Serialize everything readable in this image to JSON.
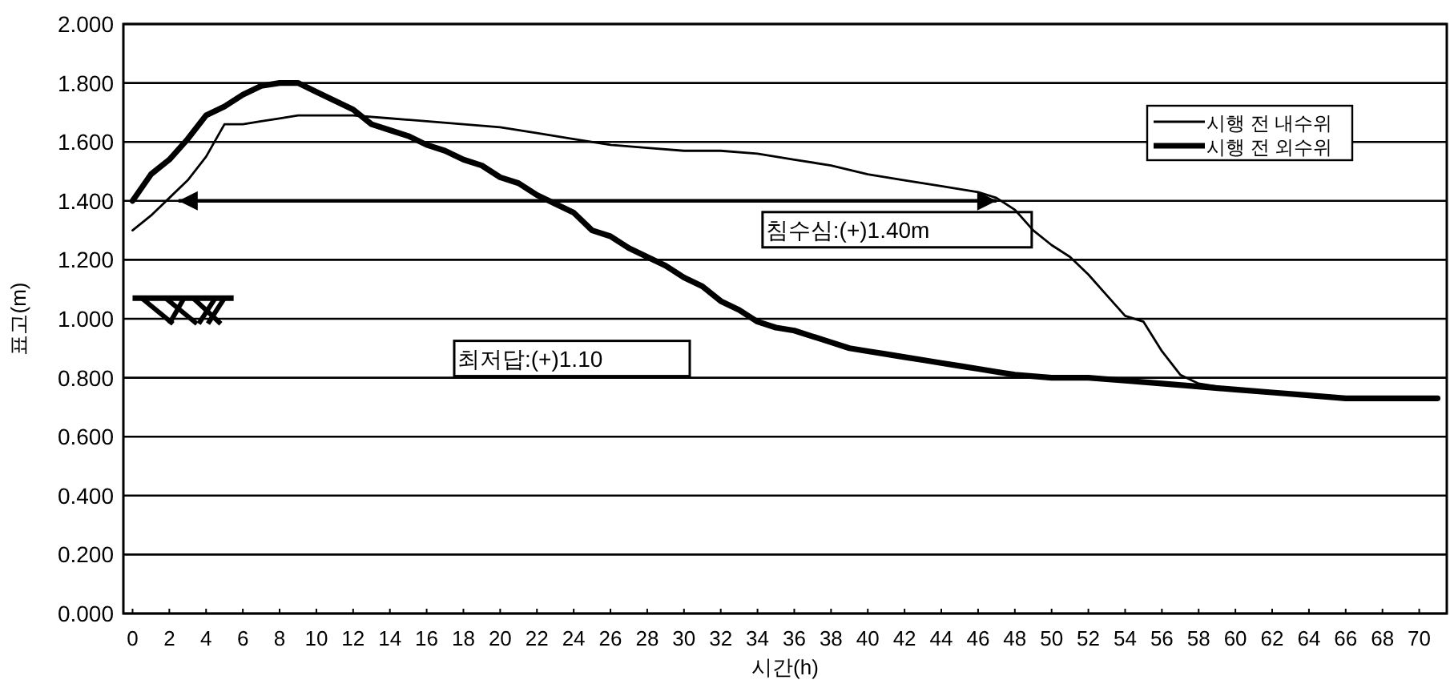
{
  "chart_data": {
    "type": "line",
    "xlabel": "시간(h)",
    "ylabel": "표고(m)",
    "xlim": [
      -0.5,
      71.5
    ],
    "xticks": [
      0,
      2,
      4,
      6,
      8,
      10,
      12,
      14,
      16,
      18,
      20,
      22,
      24,
      26,
      28,
      30,
      32,
      34,
      36,
      38,
      40,
      42,
      44,
      46,
      48,
      50,
      52,
      54,
      56,
      58,
      60,
      62,
      64,
      66,
      68,
      70
    ],
    "ylim": [
      0,
      2
    ],
    "yticks": [
      {
        "value": 0,
        "label": "0.000"
      },
      {
        "value": 0.2,
        "label": "0.200"
      },
      {
        "value": 0.4,
        "label": "0.400"
      },
      {
        "value": 0.6,
        "label": "0.600"
      },
      {
        "value": 0.8,
        "label": "0.800"
      },
      {
        "value": 1,
        "label": "1.000"
      },
      {
        "value": 1.2,
        "label": "1.200"
      },
      {
        "value": 1.4,
        "label": "1.400"
      },
      {
        "value": 1.6,
        "label": "1.600"
      },
      {
        "value": 1.8,
        "label": "1.800"
      },
      {
        "value": 2,
        "label": "2.000"
      }
    ],
    "grid": "y",
    "legend": "top right",
    "marker": "none",
    "line_style": "solid",
    "series": [
      {
        "name": "시행 전 내수위",
        "color": "#000000",
        "x": [
          0,
          1,
          2,
          3,
          4,
          5,
          6,
          7,
          8,
          9,
          10,
          11,
          12,
          14,
          16,
          18,
          20,
          22,
          24,
          26,
          28,
          30,
          32,
          34,
          36,
          38,
          40,
          42,
          44,
          46,
          47,
          48,
          49,
          50,
          51,
          52,
          53,
          54,
          55,
          56,
          57,
          58,
          60,
          62,
          64,
          66,
          68,
          70,
          71
        ],
        "values": [
          1.3,
          1.35,
          1.41,
          1.47,
          1.55,
          1.66,
          1.66,
          1.67,
          1.68,
          1.69,
          1.69,
          1.69,
          1.69,
          1.68,
          1.67,
          1.66,
          1.65,
          1.63,
          1.61,
          1.59,
          1.58,
          1.57,
          1.57,
          1.56,
          1.54,
          1.52,
          1.49,
          1.47,
          1.45,
          1.43,
          1.41,
          1.37,
          1.3,
          1.25,
          1.21,
          1.15,
          1.08,
          1.01,
          0.99,
          0.89,
          0.81,
          0.78,
          0.76,
          0.75,
          0.74,
          0.73,
          0.73,
          0.73,
          0.73
        ]
      },
      {
        "name": "시행 전 외수위",
        "color": "#000000",
        "x": [
          0,
          1,
          2,
          3,
          4,
          5,
          6,
          7,
          8,
          9,
          10,
          11,
          12,
          13,
          14,
          15,
          16,
          17,
          18,
          19,
          20,
          21,
          22,
          23,
          24,
          25,
          26,
          27,
          28,
          29,
          30,
          31,
          32,
          33,
          34,
          35,
          36,
          37,
          38,
          39,
          40,
          41,
          42,
          43,
          44,
          45,
          46,
          47,
          48,
          50,
          52,
          54,
          56,
          58,
          60,
          62,
          64,
          66,
          68,
          70,
          71
        ],
        "values": [
          1.4,
          1.49,
          1.54,
          1.61,
          1.69,
          1.72,
          1.76,
          1.79,
          1.8,
          1.8,
          1.77,
          1.74,
          1.71,
          1.66,
          1.64,
          1.62,
          1.59,
          1.57,
          1.54,
          1.52,
          1.48,
          1.46,
          1.42,
          1.39,
          1.36,
          1.3,
          1.28,
          1.24,
          1.21,
          1.18,
          1.14,
          1.11,
          1.06,
          1.03,
          0.99,
          0.97,
          0.96,
          0.94,
          0.92,
          0.9,
          0.89,
          0.88,
          0.87,
          0.86,
          0.85,
          0.84,
          0.83,
          0.82,
          0.81,
          0.8,
          0.8,
          0.79,
          0.78,
          0.77,
          0.76,
          0.75,
          0.74,
          0.73,
          0.73,
          0.73,
          0.73
        ]
      }
    ],
    "annotations": [
      "침수심:(+)1.40m",
      "최저답:(+)1.10"
    ]
  }
}
